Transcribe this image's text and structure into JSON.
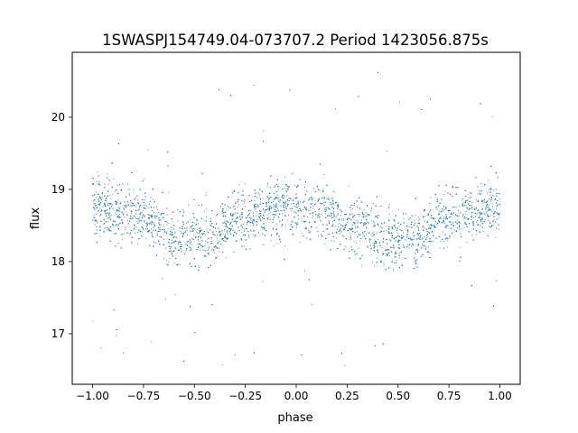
{
  "chart_data": {
    "type": "scatter",
    "title": "1SWASPJ154749.04-073707.2 Period 1423056.875s",
    "xlabel": "phase",
    "ylabel": "flux",
    "xlim": [
      -1.1,
      1.1
    ],
    "ylim": [
      16.3,
      20.9
    ],
    "xticks": [
      -1.0,
      -0.75,
      -0.5,
      -0.25,
      0.0,
      0.25,
      0.5,
      0.75,
      1.0
    ],
    "xtick_labels": [
      "−1.00",
      "−0.75",
      "−0.50",
      "−0.25",
      "0.00",
      "0.25",
      "0.50",
      "0.75",
      "1.00"
    ],
    "yticks": [
      17,
      18,
      19,
      20
    ],
    "ytick_labels": [
      "17",
      "18",
      "19",
      "20"
    ],
    "grid": false,
    "legend": "none",
    "color": "#1f77b4",
    "series": [
      {
        "x": [
          -1.0,
          -0.95,
          -0.9,
          -0.85,
          -0.8,
          -0.75,
          -0.7,
          -0.65,
          -0.6,
          -0.55,
          -0.5,
          -0.45,
          -0.4,
          -0.35,
          -0.3,
          -0.25,
          -0.2,
          -0.15,
          -0.1,
          -0.05,
          0.0,
          0.05,
          0.1,
          0.15,
          0.2,
          0.25,
          0.3,
          0.35,
          0.4,
          0.45,
          0.5,
          0.55,
          0.6,
          0.65,
          0.7,
          0.75,
          0.8,
          0.85,
          0.9,
          0.95,
          1.0
        ],
        "y": [
          18.8,
          18.75,
          18.7,
          18.7,
          18.65,
          18.6,
          18.55,
          18.45,
          18.3,
          18.4,
          18.35,
          18.4,
          18.3,
          18.5,
          18.6,
          18.6,
          18.65,
          18.7,
          18.75,
          18.75,
          18.75,
          18.7,
          18.7,
          18.65,
          18.6,
          18.55,
          18.5,
          18.5,
          18.35,
          18.35,
          18.3,
          18.4,
          18.35,
          18.45,
          18.55,
          18.6,
          18.65,
          18.7,
          18.7,
          18.75,
          18.75
        ]
      }
    ]
  }
}
